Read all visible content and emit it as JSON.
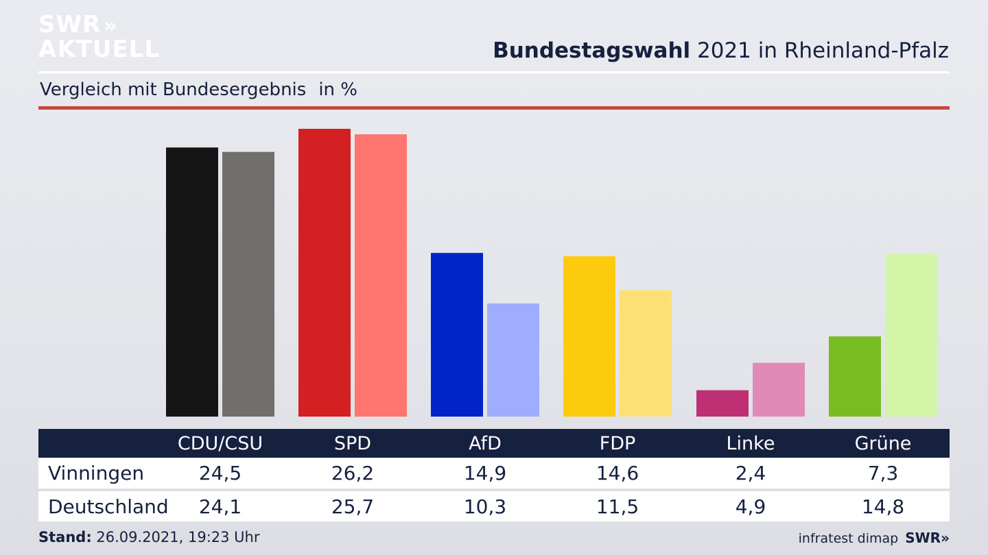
{
  "logo": {
    "line1": "SWR",
    "line2": "AKTUELL",
    "chevrons": "»"
  },
  "header": {
    "title_bold": "Bundestagswahl",
    "title_rest": " 2021 in Rheinland-Pfalz",
    "subtitle": "Vergleich mit Bundesergebnis",
    "unit": "in %"
  },
  "colors": {
    "navy": "#16203f",
    "accent_rule": "#c8473f"
  },
  "chart_data": {
    "type": "bar",
    "title": "Bundestagswahl 2021 in Rheinland-Pfalz",
    "subtitle": "Vergleich mit Bundesergebnis",
    "ylabel": "in %",
    "categories": [
      "CDU/CSU",
      "SPD",
      "AfD",
      "FDP",
      "Linke",
      "Grüne"
    ],
    "series": [
      {
        "name": "Vinningen",
        "values": [
          24.5,
          26.2,
          14.9,
          14.6,
          2.4,
          7.3
        ],
        "colors": [
          "#151515",
          "#d41f23",
          "#0024c8",
          "#fdcb0e",
          "#be2f73",
          "#79bc22"
        ]
      },
      {
        "name": "Deutschland",
        "values": [
          24.1,
          25.7,
          10.3,
          11.5,
          4.9,
          14.8
        ],
        "colors": [
          "#706f6d",
          "#ff7570",
          "#9eadfd",
          "#fde075",
          "#e08bb6",
          "#d2f5a8"
        ]
      }
    ],
    "ylim": [
      0,
      26.2
    ],
    "grid": false,
    "legend": "table-below"
  },
  "table": {
    "headers": [
      "CDU/CSU",
      "SPD",
      "AfD",
      "FDP",
      "Linke",
      "Grüne"
    ],
    "rows": [
      {
        "label": "Vinningen",
        "values": [
          "24,5",
          "26,2",
          "14,9",
          "14,6",
          "2,4",
          "7,3"
        ]
      },
      {
        "label": "Deutschland",
        "values": [
          "24,1",
          "25,7",
          "10,3",
          "11,5",
          "4,9",
          "14,8"
        ]
      }
    ]
  },
  "footer": {
    "stand_label": "Stand:",
    "stand_value": " 26.09.2021, 19:23 Uhr",
    "source": "infratest dimap",
    "brand": "SWR»"
  }
}
